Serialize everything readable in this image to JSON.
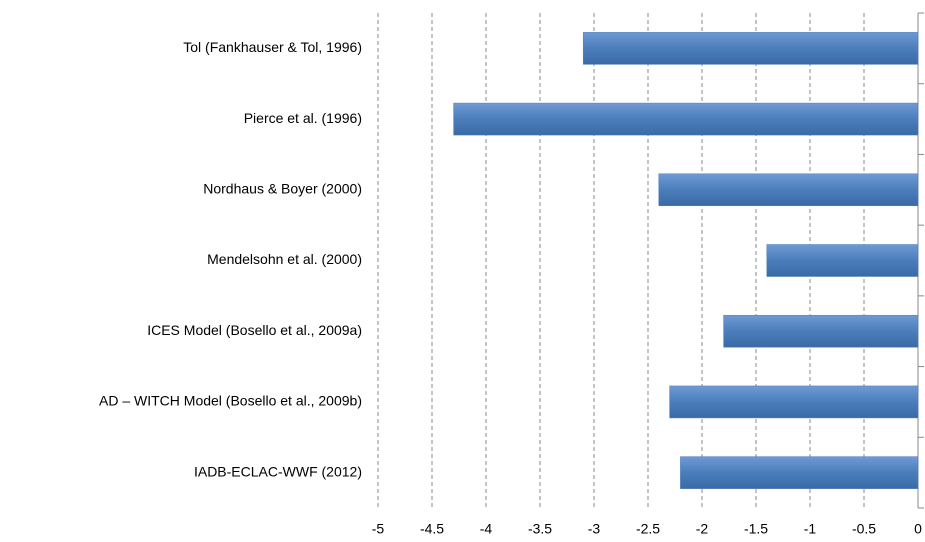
{
  "chart_data": {
    "type": "bar",
    "orientation": "horizontal",
    "categories": [
      "Tol (Fankhauser & Tol, 1996)",
      "Pierce et al. (1996)",
      "Nordhaus & Boyer (2000)",
      "Mendelsohn et al. (2000)",
      "ICES Model (Bosello et al., 2009a)",
      "AD – WITCH Model (Bosello et al., 2009b)",
      "IADB-ECLAC-WWF (2012)"
    ],
    "values": [
      -3.1,
      -4.3,
      -2.4,
      -1.4,
      -1.8,
      -2.3,
      -2.2
    ],
    "color": "#4a7ebb",
    "xlim": [
      -5,
      0
    ],
    "xticks": [
      -5,
      -4.5,
      -4,
      -3.5,
      -3,
      -2.5,
      -2,
      -1.5,
      -1,
      -0.5,
      0
    ],
    "grid": true
  }
}
